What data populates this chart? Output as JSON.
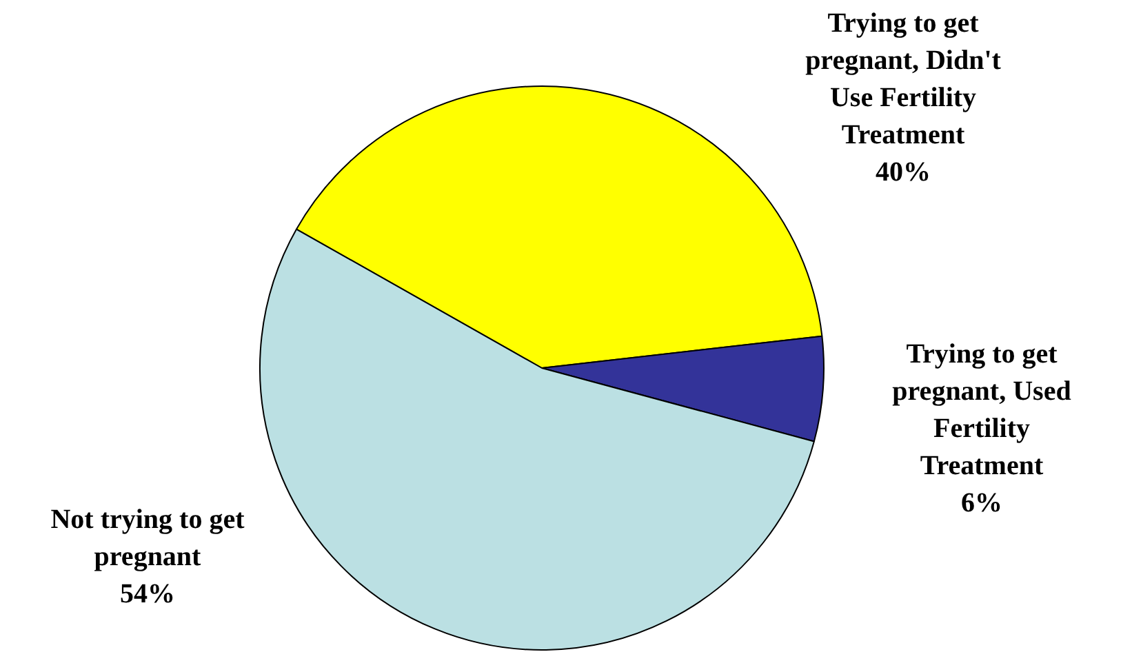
{
  "chart_data": {
    "type": "pie",
    "categories": [
      "Trying to get pregnant, Didn't Use Fertility Treatment",
      "Trying to get pregnant, Used Fertility Treatment",
      "Not trying to get pregnant"
    ],
    "values": [
      40,
      6,
      54
    ],
    "value_labels": [
      "40%",
      "6%",
      "54%"
    ],
    "colors": [
      "#ffff00",
      "#333399",
      "#bbe0e3"
    ],
    "legend": false
  }
}
